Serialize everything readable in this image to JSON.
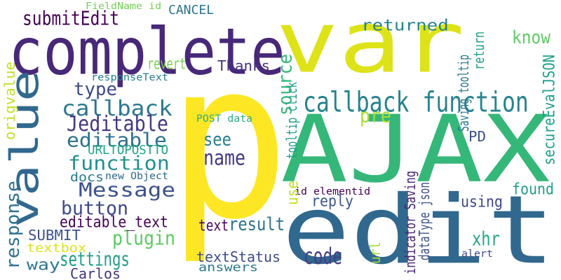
{
  "words": [
    {
      "text": "var",
      "color": "#dde318"
    },
    {
      "text": "p",
      "color": "#fde725"
    },
    {
      "text": "AJAX",
      "color": "#35b779"
    },
    {
      "text": "edit",
      "color": "#31688e"
    },
    {
      "text": "complete",
      "color": "#482878"
    },
    {
      "text": "value",
      "color": "#31688e"
    },
    {
      "text": "callback function",
      "color": "#26828e"
    },
    {
      "text": "callback",
      "color": "#2a788e"
    },
    {
      "text": "Jeditable",
      "color": "#443983"
    },
    {
      "text": "editable",
      "color": "#2c728e"
    },
    {
      "text": "function",
      "color": "#21918c"
    },
    {
      "text": "Message",
      "color": "#3b528b"
    },
    {
      "text": "button",
      "color": "#3e4989"
    },
    {
      "text": "plugin",
      "color": "#5ec962"
    },
    {
      "text": "settings",
      "color": "#1f9e89"
    },
    {
      "text": "result",
      "color": "#2c728e"
    },
    {
      "text": "code",
      "color": "#433e85"
    },
    {
      "text": "submitEdit",
      "color": "#440154"
    },
    {
      "text": "type",
      "color": "#3e4989"
    },
    {
      "text": "name",
      "color": "#443983"
    },
    {
      "text": "see",
      "color": "#287d8e"
    },
    {
      "text": "pre",
      "color": "#addc30"
    },
    {
      "text": "know",
      "color": "#5ec962"
    },
    {
      "text": "returned",
      "color": "#26828e"
    },
    {
      "text": "response",
      "color": "#2c728e"
    },
    {
      "text": "xhr",
      "color": "#22a884"
    },
    {
      "text": "found",
      "color": "#1f9e89"
    },
    {
      "text": "using",
      "color": "#404688"
    },
    {
      "text": "reply",
      "color": "#38588c"
    },
    {
      "text": "editable_text",
      "color": "#440154"
    },
    {
      "text": "text",
      "color": "#46085c"
    },
    {
      "text": "textStatus",
      "color": "#3e4a89"
    },
    {
      "text": "answers",
      "color": "#2a788e"
    },
    {
      "text": "way",
      "color": "#2a788e"
    },
    {
      "text": "Carlos",
      "color": "#46337e"
    },
    {
      "text": "SUBMIT",
      "color": "#3b528b"
    },
    {
      "text": "textbox",
      "color": "#dde318"
    },
    {
      "text": "Thanks",
      "color": "#463480"
    },
    {
      "text": "revert",
      "color": "#7ad151"
    },
    {
      "text": "CANCEL",
      "color": "#2c728e"
    },
    {
      "text": "URLTOPOSTTO",
      "color": "#20a386"
    },
    {
      "text": "docs",
      "color": "#2a788e"
    },
    {
      "text": "new Object",
      "color": "#31688e"
    },
    {
      "text": "PD",
      "color": "#3b528b"
    },
    {
      "text": "responseText",
      "color": "#277f8e"
    },
    {
      "text": "POST data",
      "color": "#29af7f"
    },
    {
      "text": "id elementid",
      "color": "#440154"
    },
    {
      "text": "alert",
      "color": "#3e4a89"
    },
    {
      "text": "FieldName id",
      "color": "#75d054"
    },
    {
      "text": "origvalue",
      "color": "#c2df23"
    },
    {
      "text": "source",
      "color": "#35b779"
    },
    {
      "text": "tooltip click",
      "color": "#1f9e89"
    },
    {
      "text": "use",
      "color": "#bddf26"
    },
    {
      "text": "url",
      "color": "#a5db36"
    },
    {
      "text": "secureEvalJSON",
      "color": "#1f9e89"
    },
    {
      "text": "Saving tooltip",
      "color": "#2a788e"
    },
    {
      "text": "return",
      "color": "#1f9e89"
    },
    {
      "text": "indicator Saving",
      "color": "#482576"
    },
    {
      "text": "dataType json",
      "color": "#3b528b"
    }
  ]
}
